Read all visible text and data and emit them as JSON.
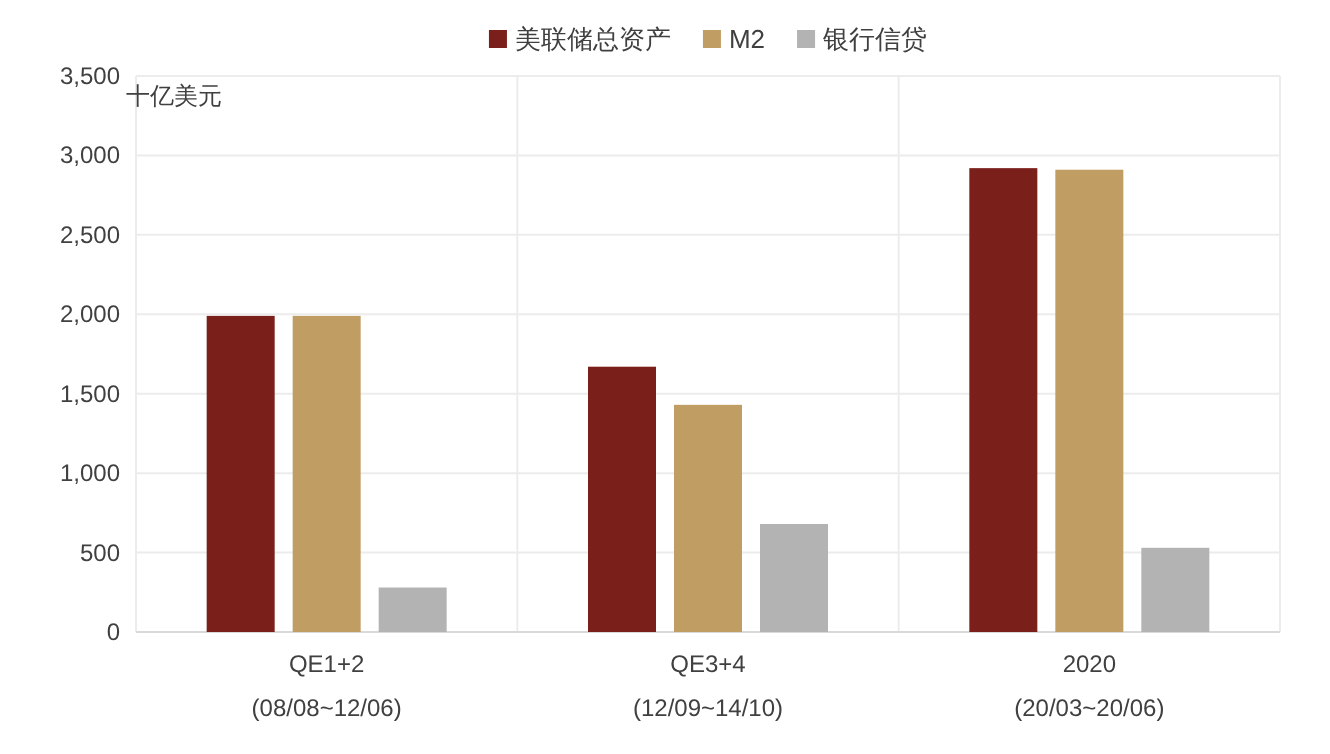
{
  "chart_data": {
    "type": "bar",
    "ylabel": "十亿美元",
    "categories": [
      "QE1+2\n(08/08~12/06)",
      "QE3+4\n(12/09~14/10)",
      "2020\n(20/03~20/06)"
    ],
    "series": [
      {
        "name": "美联储总资产",
        "color": "#7b1f1b",
        "values": [
          1990,
          1670,
          2920
        ]
      },
      {
        "name": "M2",
        "color": "#c09e63",
        "values": [
          1990,
          1430,
          2910
        ]
      },
      {
        "name": "银行信贷",
        "color": "#b3b3b3",
        "values": [
          280,
          680,
          530
        ]
      }
    ],
    "ylim": [
      0,
      3500
    ],
    "yticks": [
      {
        "value": 0,
        "label": "0"
      },
      {
        "value": 500,
        "label": "500"
      },
      {
        "value": 1000,
        "label": "1,000"
      },
      {
        "value": 1500,
        "label": "1,500"
      },
      {
        "value": 2000,
        "label": "2,000"
      },
      {
        "value": 2500,
        "label": "2,500"
      },
      {
        "value": 3000,
        "label": "3,000"
      },
      {
        "value": 3500,
        "label": "3,500"
      }
    ],
    "grid": true,
    "legend": "top"
  }
}
